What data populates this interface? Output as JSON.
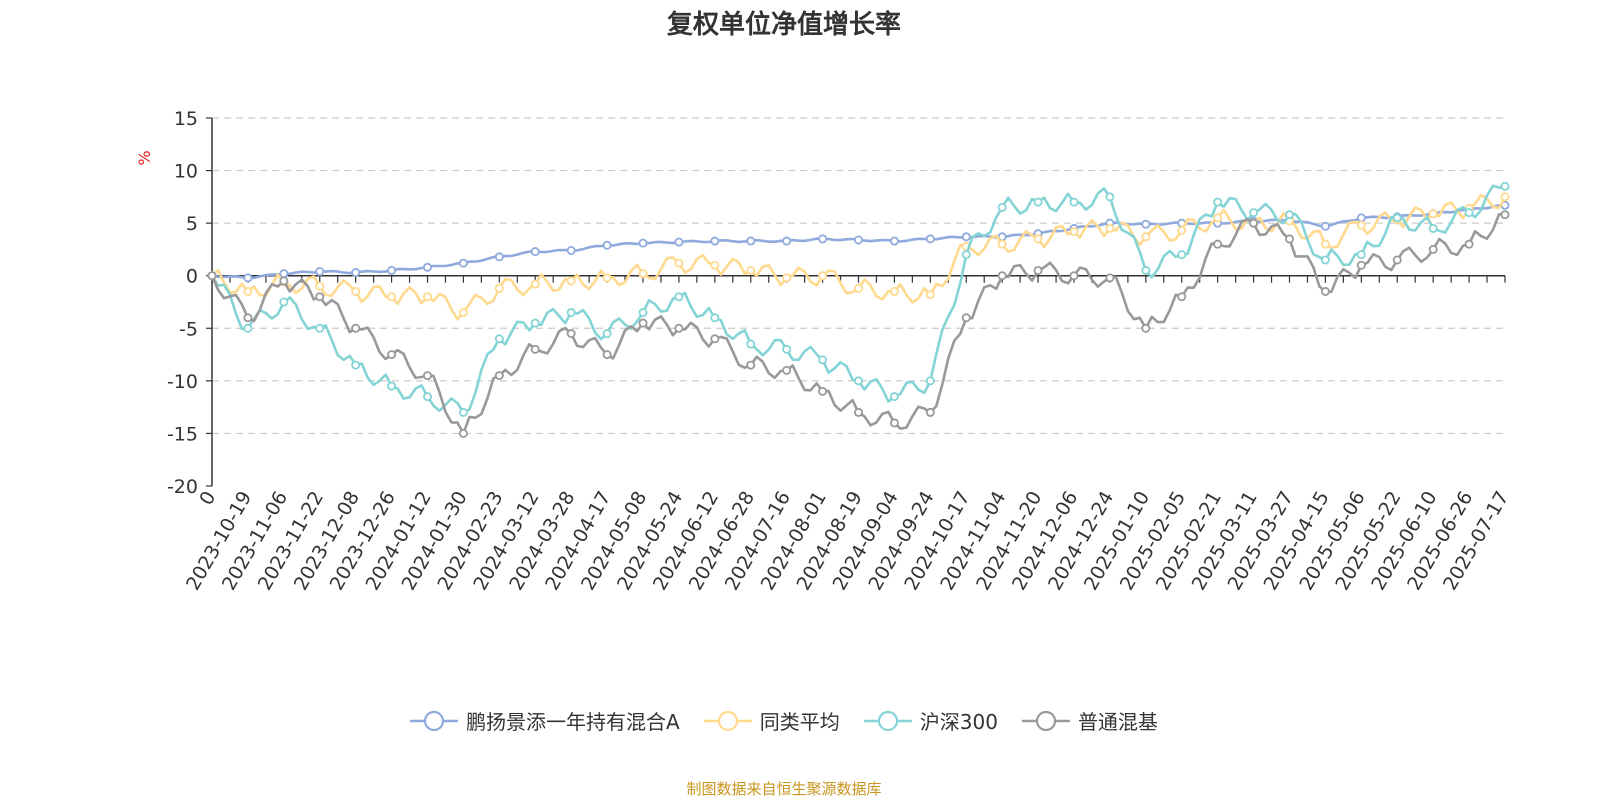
{
  "chart_data": {
    "type": "line",
    "title": "复权单位净值增长率",
    "ylabel": "%",
    "ylim": [
      -20,
      15
    ],
    "yticks": [
      15,
      10,
      5,
      0,
      -5,
      -10,
      -15,
      -20
    ],
    "grid": "horizontal-dashed",
    "legend_position": "bottom",
    "x_ticks": [
      "0",
      "2023-10-19",
      "2023-11-06",
      "2023-11-22",
      "2023-12-08",
      "2023-12-26",
      "2024-01-12",
      "2024-01-30",
      "2024-02-23",
      "2024-03-12",
      "2024-03-28",
      "2024-04-17",
      "2024-05-08",
      "2024-05-24",
      "2024-06-12",
      "2024-06-28",
      "2024-07-16",
      "2024-08-01",
      "2024-08-19",
      "2024-09-04",
      "2024-09-24",
      "2024-10-17",
      "2024-11-04",
      "2024-11-20",
      "2024-12-06",
      "2024-12-24",
      "2025-01-10",
      "2025-02-05",
      "2025-02-21",
      "2025-03-11",
      "2025-03-27",
      "2025-04-15",
      "2025-05-06",
      "2025-05-22",
      "2025-06-10",
      "2025-06-26",
      "2025-07-17"
    ],
    "series": [
      {
        "name": "鹏扬景添一年持有混合A",
        "color": "#8FAADC",
        "points": [
          [
            0,
            0
          ],
          [
            1,
            -0.2
          ],
          [
            2,
            0.2
          ],
          [
            3,
            0.4
          ],
          [
            4,
            0.3
          ],
          [
            5,
            0.5
          ],
          [
            6,
            0.8
          ],
          [
            7,
            1.2
          ],
          [
            8,
            1.8
          ],
          [
            9,
            2.3
          ],
          [
            10,
            2.4
          ],
          [
            11,
            2.9
          ],
          [
            12,
            3.1
          ],
          [
            13,
            3.2
          ],
          [
            14,
            3.3
          ],
          [
            15,
            3.3
          ],
          [
            16,
            3.3
          ],
          [
            17,
            3.5
          ],
          [
            18,
            3.4
          ],
          [
            19,
            3.3
          ],
          [
            20,
            3.5
          ],
          [
            21,
            3.7
          ],
          [
            22,
            3.7
          ],
          [
            23,
            4.0
          ],
          [
            24,
            4.5
          ],
          [
            25,
            5.0
          ],
          [
            26,
            4.9
          ],
          [
            27,
            5.0
          ],
          [
            28,
            5.0
          ],
          [
            29,
            5.2
          ],
          [
            30,
            5.3
          ],
          [
            31,
            4.7
          ],
          [
            32,
            5.5
          ],
          [
            33,
            5.6
          ],
          [
            34,
            5.9
          ],
          [
            35,
            6.3
          ],
          [
            36,
            6.7
          ]
        ]
      },
      {
        "name": "同类平均",
        "color": "#FFD98E",
        "points": [
          [
            0,
            0
          ],
          [
            1,
            -1.5
          ],
          [
            2,
            -0.6
          ],
          [
            3,
            -1.0
          ],
          [
            4,
            -1.5
          ],
          [
            5,
            -2.0
          ],
          [
            6,
            -2.0
          ],
          [
            7,
            -3.5
          ],
          [
            8,
            -1.2
          ],
          [
            9,
            -0.8
          ],
          [
            10,
            -0.5
          ],
          [
            11,
            -0.2
          ],
          [
            12,
            0.2
          ],
          [
            13,
            1.2
          ],
          [
            14,
            1.0
          ],
          [
            15,
            0.5
          ],
          [
            16,
            -0.2
          ],
          [
            17,
            0.0
          ],
          [
            18,
            -1.2
          ],
          [
            19,
            -1.5
          ],
          [
            20,
            -1.8
          ],
          [
            21,
            2.8
          ],
          [
            22,
            3.0
          ],
          [
            23,
            3.5
          ],
          [
            24,
            4.2
          ],
          [
            25,
            4.5
          ],
          [
            26,
            3.7
          ],
          [
            27,
            4.3
          ],
          [
            28,
            5.5
          ],
          [
            29,
            5.0
          ],
          [
            30,
            5.2
          ],
          [
            31,
            3.0
          ],
          [
            32,
            4.8
          ],
          [
            33,
            5.3
          ],
          [
            34,
            5.9
          ],
          [
            35,
            6.4
          ],
          [
            36,
            7.5
          ]
        ]
      },
      {
        "name": "沪深300",
        "color": "#84D4D6",
        "points": [
          [
            0,
            0
          ],
          [
            1,
            -5.0
          ],
          [
            2,
            -2.5
          ],
          [
            3,
            -5.0
          ],
          [
            4,
            -8.5
          ],
          [
            5,
            -10.5
          ],
          [
            6,
            -11.5
          ],
          [
            7,
            -13.0
          ],
          [
            8,
            -6.0
          ],
          [
            9,
            -4.5
          ],
          [
            10,
            -3.5
          ],
          [
            11,
            -5.5
          ],
          [
            12,
            -3.5
          ],
          [
            13,
            -2.0
          ],
          [
            14,
            -4.0
          ],
          [
            15,
            -6.5
          ],
          [
            16,
            -7.0
          ],
          [
            17,
            -8.0
          ],
          [
            18,
            -10.0
          ],
          [
            19,
            -11.5
          ],
          [
            20,
            -10.0
          ],
          [
            21,
            2.0
          ],
          [
            22,
            6.5
          ],
          [
            23,
            7.0
          ],
          [
            24,
            7.0
          ],
          [
            25,
            7.5
          ],
          [
            26,
            0.5
          ],
          [
            27,
            2.0
          ],
          [
            28,
            7.0
          ],
          [
            29,
            6.0
          ],
          [
            30,
            5.8
          ],
          [
            31,
            1.5
          ],
          [
            32,
            2.0
          ],
          [
            33,
            5.5
          ],
          [
            34,
            4.5
          ],
          [
            35,
            6.0
          ],
          [
            36,
            8.5
          ]
        ]
      },
      {
        "name": "普通混基",
        "color": "#999999",
        "points": [
          [
            0,
            0
          ],
          [
            1,
            -4.0
          ],
          [
            2,
            -0.5
          ],
          [
            3,
            -2.0
          ],
          [
            4,
            -5.0
          ],
          [
            5,
            -7.5
          ],
          [
            6,
            -9.5
          ],
          [
            7,
            -15.0
          ],
          [
            8,
            -9.5
          ],
          [
            9,
            -7.0
          ],
          [
            10,
            -5.5
          ],
          [
            11,
            -7.5
          ],
          [
            12,
            -4.5
          ],
          [
            13,
            -5.0
          ],
          [
            14,
            -6.0
          ],
          [
            15,
            -8.5
          ],
          [
            16,
            -9.0
          ],
          [
            17,
            -11.0
          ],
          [
            18,
            -13.0
          ],
          [
            19,
            -14.0
          ],
          [
            20,
            -13.0
          ],
          [
            21,
            -4.0
          ],
          [
            22,
            0.0
          ],
          [
            23,
            0.5
          ],
          [
            24,
            0.0
          ],
          [
            25,
            -0.2
          ],
          [
            26,
            -5.0
          ],
          [
            27,
            -2.0
          ],
          [
            28,
            3.0
          ],
          [
            29,
            5.0
          ],
          [
            30,
            3.5
          ],
          [
            31,
            -1.5
          ],
          [
            32,
            1.0
          ],
          [
            33,
            1.5
          ],
          [
            34,
            2.5
          ],
          [
            35,
            3.0
          ],
          [
            36,
            5.8
          ]
        ]
      }
    ]
  },
  "source_text": "制图数据来自恒生聚源数据库",
  "source_color": "#C8961E"
}
